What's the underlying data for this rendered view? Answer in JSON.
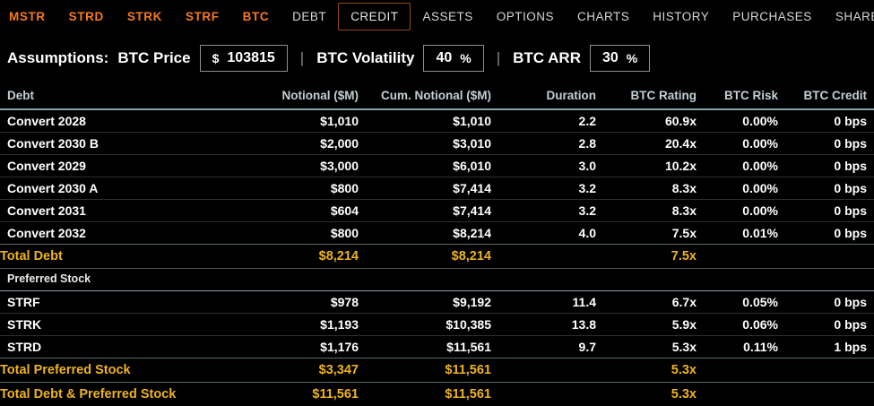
{
  "nav": {
    "items": [
      {
        "label": "MSTR",
        "style": "ticker",
        "active": false
      },
      {
        "label": "STRD",
        "style": "ticker",
        "active": false
      },
      {
        "label": "STRK",
        "style": "ticker",
        "active": false
      },
      {
        "label": "STRF",
        "style": "ticker",
        "active": false
      },
      {
        "label": "BTC",
        "style": "ticker",
        "active": false
      },
      {
        "label": "DEBT",
        "style": "tab",
        "active": false
      },
      {
        "label": "CREDIT",
        "style": "tab",
        "active": true
      },
      {
        "label": "ASSETS",
        "style": "tab",
        "active": false
      },
      {
        "label": "OPTIONS",
        "style": "tab",
        "active": false
      },
      {
        "label": "CHARTS",
        "style": "tab",
        "active": false
      },
      {
        "label": "HISTORY",
        "style": "tab",
        "active": false
      },
      {
        "label": "PURCHASES",
        "style": "tab",
        "active": false
      },
      {
        "label": "SHARES",
        "style": "tab",
        "active": false
      }
    ],
    "separator": "|"
  },
  "assumptions": {
    "title": "Assumptions:",
    "divider": "|",
    "fields": [
      {
        "label": "BTC Price",
        "prefix": "$",
        "value": "103815",
        "suffix": ""
      },
      {
        "label": "BTC Volatility",
        "prefix": "",
        "value": "40",
        "suffix": "%"
      },
      {
        "label": "BTC ARR",
        "prefix": "",
        "value": "30",
        "suffix": "%"
      }
    ]
  },
  "table": {
    "headers": [
      "Debt",
      "Notional ($M)",
      "Cum. Notional ($M)",
      "Duration",
      "BTC Rating",
      "BTC Risk",
      "BTC Credit"
    ],
    "rows": [
      {
        "type": "data",
        "cells": [
          "Convert 2028",
          "$1,010",
          "$1,010",
          "2.2",
          "60.9x",
          "0.00%",
          "0 bps"
        ]
      },
      {
        "type": "data",
        "cells": [
          "Convert 2030 B",
          "$2,000",
          "$3,010",
          "2.8",
          "20.4x",
          "0.00%",
          "0 bps"
        ]
      },
      {
        "type": "data",
        "cells": [
          "Convert 2029",
          "$3,000",
          "$6,010",
          "3.0",
          "10.2x",
          "0.00%",
          "0 bps"
        ]
      },
      {
        "type": "data",
        "cells": [
          "Convert 2030 A",
          "$800",
          "$7,414",
          "3.2",
          "8.3x",
          "0.00%",
          "0 bps"
        ]
      },
      {
        "type": "data",
        "cells": [
          "Convert 2031",
          "$604",
          "$7,414",
          "3.2",
          "8.3x",
          "0.00%",
          "0 bps"
        ]
      },
      {
        "type": "data",
        "cells": [
          "Convert 2032",
          "$800",
          "$8,214",
          "4.0",
          "7.5x",
          "0.01%",
          "0 bps"
        ]
      },
      {
        "type": "total",
        "cells": [
          "Total Debt",
          "$8,214",
          "$8,214",
          "",
          "7.5x",
          "",
          ""
        ]
      },
      {
        "type": "section",
        "label": "Preferred Stock"
      },
      {
        "type": "data",
        "cells": [
          "STRF",
          "$978",
          "$9,192",
          "11.4",
          "6.7x",
          "0.05%",
          "0 bps"
        ]
      },
      {
        "type": "data",
        "cells": [
          "STRK",
          "$1,193",
          "$10,385",
          "13.8",
          "5.9x",
          "0.06%",
          "0 bps"
        ]
      },
      {
        "type": "data",
        "cells": [
          "STRD",
          "$1,176",
          "$11,561",
          "9.7",
          "5.3x",
          "0.11%",
          "1 bps"
        ]
      },
      {
        "type": "total",
        "cells": [
          "Total Preferred Stock",
          "$3,347",
          "$11,561",
          "",
          "5.3x",
          "",
          ""
        ]
      },
      {
        "type": "total",
        "cells": [
          "Total Debt & Preferred Stock",
          "$11,561",
          "$11,561",
          "",
          "5.3x",
          "",
          ""
        ]
      }
    ]
  },
  "colors": {
    "ticker_orange": "#f8791a",
    "total_gold": "#eeb223",
    "active_tab_border": "#96491f",
    "header_text": "#c3cfd4",
    "background": "#000000"
  }
}
